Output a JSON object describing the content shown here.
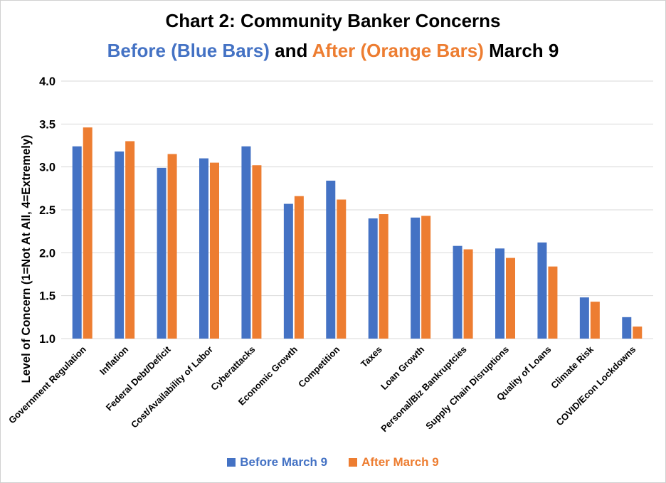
{
  "title": {
    "line1": "Chart 2: Community Banker Concerns",
    "line2_part1": "Before (Blue Bars)",
    "line2_part2": " and ",
    "line2_part3": "After (Orange Bars)",
    "line2_part4": " March 9"
  },
  "colors": {
    "before": "#4472C4",
    "after": "#ED7D31",
    "grid": "#d9d9d9"
  },
  "legend": {
    "before_label": "Before March 9",
    "after_label": "After March 9"
  },
  "chart_data": {
    "type": "bar",
    "ylabel": "Level of Concern (1=Not At All, 4=Extremely)",
    "ylim": [
      1.0,
      4.0
    ],
    "yticks": [
      "1.0",
      "1.5",
      "2.0",
      "2.5",
      "3.0",
      "3.5",
      "4.0"
    ],
    "grid": true,
    "legend_position": "bottom",
    "categories": [
      "Government Regulation",
      "Inflation",
      "Federal Debt/Deficit",
      "Cost/Availability of Labor",
      "Cyberattacks",
      "Economic Growth",
      "Competition",
      "Taxes",
      "Loan Growth",
      "Personal/Biz Bankruptcies",
      "Supply Chain Disruptions",
      "Quality of Loans",
      "Climate Risk",
      "COVID/Econ Lockdowns"
    ],
    "series": [
      {
        "name": "Before March 9",
        "values": [
          3.24,
          3.18,
          2.99,
          3.1,
          3.24,
          2.57,
          2.84,
          2.4,
          2.41,
          2.08,
          2.05,
          2.12,
          1.48,
          1.25
        ]
      },
      {
        "name": "After March 9",
        "values": [
          3.46,
          3.3,
          3.15,
          3.05,
          3.02,
          2.66,
          2.62,
          2.45,
          2.43,
          2.04,
          1.94,
          1.84,
          1.43,
          1.14
        ]
      }
    ]
  }
}
